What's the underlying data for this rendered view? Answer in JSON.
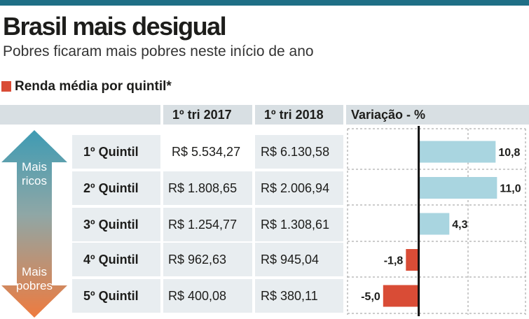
{
  "title": "Brasil mais desigual",
  "subtitle": "Pobres ficaram mais pobres neste início de ano",
  "legend_label": "Renda média por quintil*",
  "colors": {
    "top_bar": "#1f6f86",
    "legend_square": "#d94c36",
    "positive_bar": "#a9d5e0",
    "negative_bar": "#d94c36",
    "arrow_top": "#3e9bb3",
    "arrow_bottom": "#ee7b3f"
  },
  "arrow": {
    "top_label": [
      "Mais",
      "ricos"
    ],
    "bottom_label": [
      "Mais",
      "pobres"
    ]
  },
  "chart_data": {
    "type": "table",
    "columns": [
      "1º tri 2017",
      "1º tri 2018",
      "Variação - %"
    ],
    "rows": [
      {
        "label": "1º Quintil",
        "tri_2017": "R$ 5.534,27",
        "tri_2018": "R$ 6.130,58",
        "variation": 10.8,
        "variation_label": "10,8"
      },
      {
        "label": "2º Quintil",
        "tri_2017": "R$ 1.808,65",
        "tri_2018": "R$ 2.006,94",
        "variation": 11.0,
        "variation_label": "11,0"
      },
      {
        "label": "3º Quintil",
        "tri_2017": "R$ 1.254,77",
        "tri_2018": "R$ 1.308,61",
        "variation": 4.3,
        "variation_label": "4,3"
      },
      {
        "label": "4º Quintil",
        "tri_2017": "R$ 962,63",
        "tri_2018": "R$ 945,04",
        "variation": -1.8,
        "variation_label": "-1,8"
      },
      {
        "label": "5º Quintil",
        "tri_2017": "R$ 400,08",
        "tri_2018": "R$ 380,11",
        "variation": -5.0,
        "variation_label": "-5,0"
      }
    ],
    "variation_range": [
      -10,
      15
    ],
    "grid": true
  }
}
